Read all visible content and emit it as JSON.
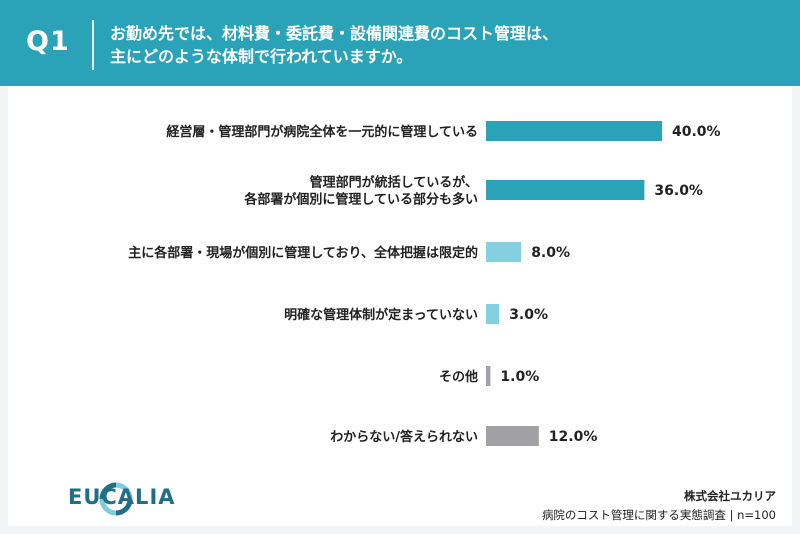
{
  "header": {
    "q_label": "Q1",
    "question_line1": "お勤め先では、材料費・委託費・設備関連費のコスト管理は、",
    "question_line2": "主にどのような体制で行われていますか。"
  },
  "colors": {
    "header_bg": "#2aa3b8",
    "bar_dark": "#2aa3b8",
    "bar_light": "#84cfe0",
    "bar_gray": "#a0a0a5",
    "logo_dark": "#1f6f86",
    "logo_light": "#7dcde0"
  },
  "chart_data": {
    "type": "bar",
    "orientation": "horizontal",
    "categories": [
      [
        "経営層・管理部門が病院全体を一元的に管理している"
      ],
      [
        "管理部門が統括しているが、",
        "各部署が個別に管理している部分も多い"
      ],
      [
        "主に各部署・現場が個別に管理しており、全体把握は限定的"
      ],
      [
        "明確な管理体制が定まっていない"
      ],
      [
        "その他"
      ],
      [
        "わからない/答えられない"
      ]
    ],
    "values": [
      40.0,
      36.0,
      8.0,
      3.0,
      1.0,
      12.0
    ],
    "value_labels": [
      "40.0%",
      "36.0%",
      "8.0%",
      "3.0%",
      "1.0%",
      "12.0%"
    ],
    "bar_color_keys": [
      "bar_dark",
      "bar_dark",
      "bar_light",
      "bar_light",
      "bar_gray",
      "bar_gray"
    ],
    "xlim": [
      0,
      40
    ],
    "grid": false,
    "legend": "none"
  },
  "footer": {
    "brand": "EUCALIA",
    "company": "株式会社ユカリア",
    "survey": "病院のコスト管理に関する実態調査 | n=100"
  }
}
